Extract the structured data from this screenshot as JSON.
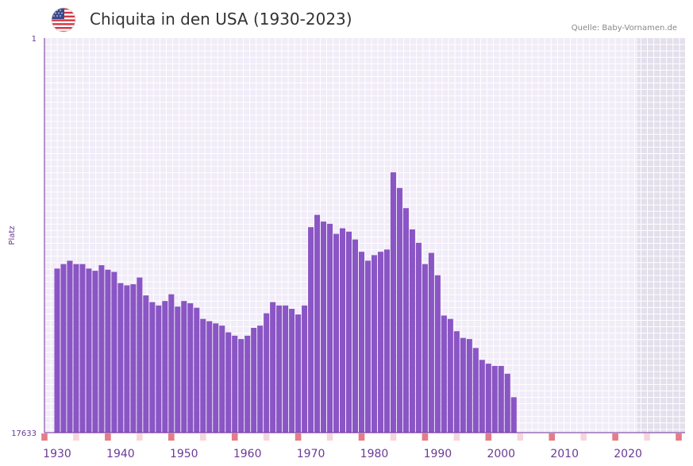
{
  "header": {
    "title": "Chiquita in den USA (1930-2023)",
    "source": "Quelle: Baby-Vornamen.de",
    "flag_icon": "usa-flag-icon"
  },
  "colors": {
    "bar": "#8a55c4",
    "plot_bg": "#f1ecf8",
    "grid": "#ffffff",
    "future_bg": "#e3dfec",
    "axis": "#6f2c91",
    "tick_text": "#6a3a96",
    "marker_strong": "#e57c87",
    "marker_light": "#f6d6dc"
  },
  "chart_data": {
    "type": "bar",
    "title": "Chiquita in den USA (1930-2023)",
    "xlabel": "",
    "ylabel": "Platz",
    "y_inverted": true,
    "ylim": [
      1,
      17633
    ],
    "ytick_labels": [
      "1",
      "17633"
    ],
    "xlim": [
      1928,
      2029
    ],
    "xtick_labels": [
      "1930",
      "1940",
      "1950",
      "1960",
      "1970",
      "1980",
      "1990",
      "2000",
      "2010",
      "2020"
    ],
    "x": [
      1930,
      1931,
      1932,
      1933,
      1934,
      1935,
      1936,
      1937,
      1938,
      1939,
      1940,
      1941,
      1942,
      1943,
      1944,
      1945,
      1946,
      1947,
      1948,
      1949,
      1950,
      1951,
      1952,
      1953,
      1954,
      1955,
      1956,
      1957,
      1958,
      1959,
      1960,
      1961,
      1962,
      1963,
      1964,
      1965,
      1966,
      1967,
      1968,
      1969,
      1970,
      1971,
      1972,
      1973,
      1974,
      1975,
      1976,
      1977,
      1978,
      1979,
      1980,
      1981,
      1982,
      1983,
      1984,
      1985,
      1986,
      1987,
      1988,
      1989,
      1990,
      1991,
      1992,
      1993,
      1994,
      1995,
      1996,
      1997,
      1998,
      1999,
      2000,
      2001,
      2002,
      2003,
      2004,
      2005,
      2006,
      2007,
      2008,
      2009,
      2010,
      2011,
      2012,
      2013,
      2014,
      2015,
      2016,
      2017,
      2018,
      2019,
      2020,
      2021,
      2022,
      2023
    ],
    "values": [
      10300,
      10100,
      9950,
      10100,
      10100,
      10300,
      10400,
      10150,
      10350,
      10450,
      10950,
      11050,
      11000,
      10700,
      11500,
      11800,
      11950,
      11750,
      11450,
      12000,
      11750,
      11850,
      12050,
      12550,
      12650,
      12750,
      12850,
      13150,
      13300,
      13450,
      13300,
      12950,
      12850,
      12300,
      11800,
      11950,
      11950,
      12100,
      12350,
      11950,
      8450,
      7900,
      8200,
      8300,
      8750,
      8500,
      8650,
      9000,
      9550,
      9950,
      9700,
      9550,
      9450,
      6000,
      6700,
      7600,
      8550,
      9150,
      10100,
      9600,
      10600,
      12400,
      12550,
      13100,
      13400,
      13450,
      13850,
      14380,
      14550,
      14650,
      14650,
      15000,
      16050,
      null,
      null,
      null,
      null,
      null,
      null,
      null,
      null,
      null,
      null,
      null,
      null,
      null,
      null,
      null,
      null,
      null,
      null,
      null,
      null,
      null
    ],
    "future_from": 2022
  }
}
